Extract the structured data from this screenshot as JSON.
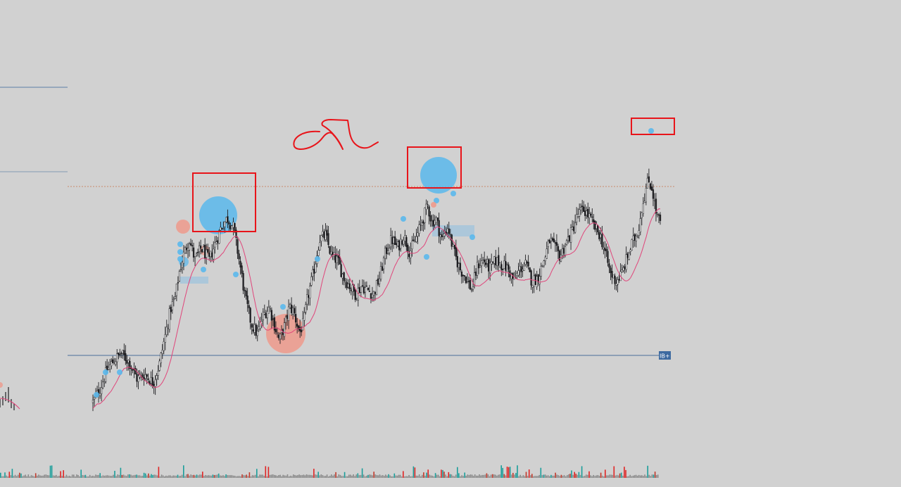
{
  "chart_data": {
    "type": "candlestick",
    "title": "",
    "xlabel": "",
    "ylabel": "",
    "ylim": [
      0,
      100
    ],
    "grid": false,
    "legend": "none",
    "price_path": [
      [
        0,
        3
      ],
      [
        6,
        8
      ],
      [
        14,
        18
      ],
      [
        20,
        22
      ],
      [
        28,
        26
      ],
      [
        36,
        22
      ],
      [
        44,
        14
      ],
      [
        52,
        16
      ],
      [
        60,
        12
      ],
      [
        66,
        20
      ],
      [
        72,
        34
      ],
      [
        78,
        48
      ],
      [
        82,
        52
      ],
      [
        86,
        64
      ],
      [
        90,
        72
      ],
      [
        96,
        80
      ],
      [
        102,
        70
      ],
      [
        108,
        76
      ],
      [
        116,
        70
      ],
      [
        122,
        78
      ],
      [
        128,
        86
      ],
      [
        134,
        90
      ],
      [
        140,
        86
      ],
      [
        146,
        70
      ],
      [
        152,
        52
      ],
      [
        158,
        40
      ],
      [
        164,
        35
      ],
      [
        170,
        44
      ],
      [
        176,
        48
      ],
      [
        182,
        38
      ],
      [
        186,
        32
      ],
      [
        192,
        40
      ],
      [
        196,
        48
      ],
      [
        200,
        46
      ],
      [
        206,
        36
      ],
      [
        210,
        40
      ],
      [
        214,
        52
      ],
      [
        220,
        64
      ],
      [
        226,
        80
      ],
      [
        232,
        82
      ],
      [
        238,
        72
      ],
      [
        244,
        70
      ],
      [
        250,
        62
      ],
      [
        256,
        58
      ],
      [
        262,
        54
      ],
      [
        268,
        58
      ],
      [
        274,
        56
      ],
      [
        280,
        54
      ],
      [
        286,
        62
      ],
      [
        292,
        74
      ],
      [
        298,
        80
      ],
      [
        304,
        76
      ],
      [
        310,
        82
      ],
      [
        316,
        74
      ],
      [
        322,
        80
      ],
      [
        328,
        88
      ],
      [
        334,
        96
      ],
      [
        338,
        88
      ],
      [
        342,
        90
      ],
      [
        348,
        80
      ],
      [
        354,
        86
      ],
      [
        360,
        74
      ],
      [
        366,
        66
      ],
      [
        372,
        62
      ],
      [
        378,
        56
      ],
      [
        384,
        68
      ],
      [
        390,
        70
      ],
      [
        396,
        66
      ],
      [
        402,
        70
      ],
      [
        408,
        68
      ],
      [
        414,
        66
      ],
      [
        420,
        60
      ],
      [
        426,
        66
      ],
      [
        432,
        68
      ],
      [
        438,
        60
      ],
      [
        444,
        62
      ],
      [
        450,
        70
      ],
      [
        456,
        80
      ],
      [
        460,
        76
      ],
      [
        466,
        72
      ],
      [
        472,
        78
      ],
      [
        478,
        84
      ],
      [
        484,
        92
      ],
      [
        490,
        94
      ],
      [
        496,
        90
      ],
      [
        500,
        86
      ],
      [
        506,
        82
      ],
      [
        512,
        72
      ],
      [
        516,
        64
      ],
      [
        522,
        60
      ],
      [
        528,
        64
      ],
      [
        532,
        70
      ],
      [
        538,
        78
      ],
      [
        544,
        84
      ],
      [
        548,
        96
      ],
      [
        554,
        108
      ],
      [
        558,
        104
      ],
      [
        562,
        92
      ],
      [
        566,
        88
      ]
    ],
    "price_line": 90,
    "support_line": 20,
    "support_label": "IB+",
    "volume_bars": 450
  },
  "annotations": {
    "left_guides": [
      116,
      88
    ]
  }
}
